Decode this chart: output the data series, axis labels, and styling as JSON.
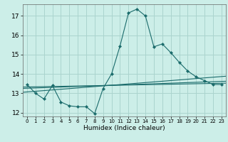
{
  "title": "",
  "xlabel": "Humidex (Indice chaleur)",
  "bg_color": "#cceee8",
  "grid_color": "#aad4ce",
  "line_color": "#1a6b6b",
  "xlim": [
    -0.5,
    23.5
  ],
  "ylim": [
    11.8,
    17.6
  ],
  "xticks": [
    0,
    1,
    2,
    3,
    4,
    5,
    6,
    7,
    8,
    9,
    10,
    11,
    12,
    13,
    14,
    15,
    16,
    17,
    18,
    19,
    20,
    21,
    22,
    23
  ],
  "yticks": [
    12,
    13,
    14,
    15,
    16,
    17
  ],
  "main_x": [
    0,
    1,
    2,
    3,
    4,
    5,
    6,
    7,
    8,
    9,
    10,
    11,
    12,
    13,
    14,
    15,
    16,
    17,
    18,
    19,
    20,
    21,
    22,
    23
  ],
  "main_y": [
    13.45,
    13.0,
    12.7,
    13.4,
    12.55,
    12.35,
    12.3,
    12.3,
    11.95,
    13.25,
    14.0,
    15.45,
    17.15,
    17.35,
    17.0,
    15.4,
    15.55,
    15.1,
    14.6,
    14.15,
    13.85,
    13.65,
    13.45,
    13.45
  ],
  "line1_x": [
    -0.5,
    23.5
  ],
  "line1_y": [
    13.25,
    13.62
  ],
  "line2_x": [
    -0.5,
    23.5
  ],
  "line2_y": [
    13.05,
    13.88
  ],
  "line3_x": [
    -0.5,
    23.5
  ],
  "line3_y": [
    13.32,
    13.52
  ]
}
